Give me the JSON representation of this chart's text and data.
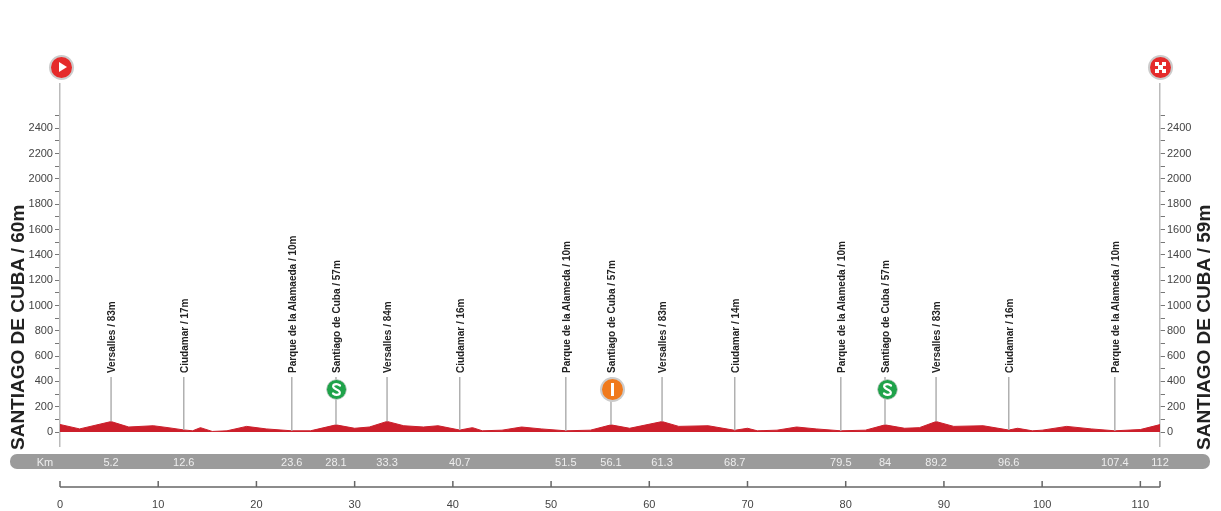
{
  "chart_data": {
    "type": "area",
    "color": "#cc1f2b",
    "grid": false,
    "legend": false,
    "ylabel": "SANTIAGO DE CUBA / 60m",
    "y2label": "SANTIAGO DE CUBA / 59m",
    "x2label": "Km",
    "x": [
      0,
      2,
      5.2,
      7,
      9.5,
      11,
      12.6,
      13.5,
      14.3,
      15.5,
      17,
      19,
      21,
      23.6,
      25.5,
      28.1,
      30,
      31.5,
      33.3,
      35,
      37,
      38.5,
      40.7,
      42,
      43,
      45,
      47,
      49,
      51.5,
      54,
      56.1,
      58,
      61.3,
      63,
      66,
      68.7,
      70,
      71,
      73,
      75,
      77,
      79.5,
      82,
      84,
      86,
      87.5,
      89.2,
      91,
      94,
      96.6,
      97.5,
      99,
      100,
      102.5,
      105,
      107.4,
      110,
      112
    ],
    "values": [
      60,
      25,
      83,
      40,
      50,
      35,
      17,
      10,
      35,
      5,
      10,
      45,
      25,
      10,
      10,
      57,
      30,
      40,
      84,
      50,
      40,
      50,
      16,
      35,
      10,
      15,
      40,
      25,
      10,
      15,
      57,
      30,
      83,
      45,
      50,
      14,
      30,
      10,
      15,
      40,
      25,
      10,
      15,
      57,
      30,
      35,
      83,
      45,
      50,
      16,
      30,
      10,
      15,
      45,
      25,
      10,
      20,
      59
    ],
    "xlim": [
      0,
      112
    ],
    "xticks": [
      0,
      10,
      20,
      30,
      40,
      50,
      60,
      70,
      80,
      90,
      100,
      110,
      {
        "value": 112,
        "label": null
      }
    ],
    "x2lim": [
      0,
      112
    ],
    "x2ticks": [
      5.2,
      12.6,
      23.6,
      28.1,
      33.3,
      40.7,
      51.5,
      56.1,
      61.3,
      68.7,
      79.5,
      84,
      89.2,
      96.6,
      107.4,
      112
    ],
    "ylim": [
      -110,
      2750
    ],
    "yticks": [
      0,
      {
        "value": 100,
        "label": null
      },
      200,
      {
        "value": 300,
        "label": null
      },
      400,
      {
        "value": 500,
        "label": null
      },
      600,
      {
        "value": 700,
        "label": null
      },
      800,
      {
        "value": 900,
        "label": null
      },
      1000,
      {
        "value": 1100,
        "label": null
      },
      1200,
      {
        "value": 1300,
        "label": null
      },
      1400,
      {
        "value": 1500,
        "label": null
      },
      1600,
      {
        "value": 1700,
        "label": null
      },
      1800,
      {
        "value": 1900,
        "label": null
      },
      2000,
      {
        "value": 2100,
        "label": null
      },
      2200,
      {
        "value": 2300,
        "label": null
      },
      2400,
      {
        "value": 2500,
        "label": null
      }
    ],
    "y2lim": [
      -110,
      2750
    ],
    "y2ticks": [
      0,
      {
        "value": 100,
        "label": null
      },
      200,
      {
        "value": 300,
        "label": null
      },
      400,
      {
        "value": 500,
        "label": null
      },
      600,
      {
        "value": 700,
        "label": null
      },
      800,
      {
        "value": 900,
        "label": null
      },
      1000,
      {
        "value": 1100,
        "label": null
      },
      1200,
      {
        "value": 1300,
        "label": null
      },
      1400,
      {
        "value": 1500,
        "label": null
      },
      1600,
      {
        "value": 1700,
        "label": null
      },
      1800,
      {
        "value": 1900,
        "label": null
      },
      2000,
      {
        "value": 2100,
        "label": null
      },
      2200,
      {
        "value": 2300,
        "label": null
      },
      2400,
      {
        "value": 2500,
        "label": null
      }
    ],
    "annotations": [
      {
        "text": "Versalles / 83m",
        "x": 5.2,
        "y": 83
      },
      {
        "text": "Ciudamar / 17m",
        "x": 12.6,
        "y": 17
      },
      {
        "text": "Parque de la Alamaeda / 10m",
        "x": 23.6,
        "y": 10
      },
      {
        "text": "Santiago de Cuba / 57m",
        "x": 28.1,
        "y": 57
      },
      {
        "text": "Versalles / 84m",
        "x": 33.3,
        "y": 84
      },
      {
        "text": "Ciudamar / 16m",
        "x": 40.7,
        "y": 16
      },
      {
        "text": "Parque de la Alameda / 10m",
        "x": 51.5,
        "y": 10
      },
      {
        "text": "Santiago de Cuba / 57m",
        "x": 56.1,
        "y": 57
      },
      {
        "text": "Versalles / 83m",
        "x": 61.3,
        "y": 83
      },
      {
        "text": "Ciudamar / 14m",
        "x": 68.7,
        "y": 14
      },
      {
        "text": "Parque de la Alameda / 10m",
        "x": 79.5,
        "y": 10
      },
      {
        "text": "Santiago de Cuba / 57m",
        "x": 84,
        "y": 57
      },
      {
        "text": "Versalles / 83m",
        "x": 89.2,
        "y": 83
      },
      {
        "text": "Ciudamar / 16m",
        "x": 96.6,
        "y": 16
      },
      {
        "text": "Parque de la Alameda / 10m",
        "x": 107.4,
        "y": 10
      }
    ]
  }
}
